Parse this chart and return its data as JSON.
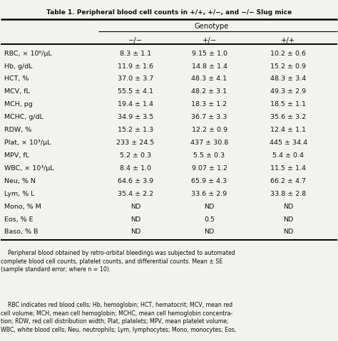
{
  "title": "Table 1. Peripheral blood cell counts in +/+, +/−, and −/− Slug mice",
  "genotype_header": "Genotype",
  "col_headers": [
    "−/−",
    "+/−",
    "+/+"
  ],
  "rows": [
    [
      "RBC, × 10⁶/μL",
      "8.3 ± 1.1",
      "9.15 ± 1.0",
      "10.2 ± 0.6"
    ],
    [
      "Hb, g/dL",
      "11.9 ± 1.6",
      "14.8 ± 1.4",
      "15.2 ± 0.9"
    ],
    [
      "HCT, %",
      "37.0 ± 3.7",
      "48.3 ± 4.1",
      "48.3 ± 3.4"
    ],
    [
      "MCV, fL",
      "55.5 ± 4.1",
      "48.2 ± 3.1",
      "49.3 ± 2.9"
    ],
    [
      "MCH, pg",
      "19.4 ± 1.4",
      "18.3 ± 1.2",
      "18.5 ± 1.1"
    ],
    [
      "MCHC, g/dL",
      "34.9 ± 3.5",
      "36.7 ± 3.3",
      "35.6 ± 3.2"
    ],
    [
      "RDW, %",
      "15.2 ± 1.3",
      "12.2 ± 0.9",
      "12.4 ± 1.1"
    ],
    [
      "Plat, × 10³/μL",
      "233 ± 24.5",
      "437 ± 30.8",
      "445 ± 34.4"
    ],
    [
      "MPV, fL",
      "5.2 ± 0.3",
      "5.5 ± 0.3",
      "5.4 ± 0.4"
    ],
    [
      "WBC, × 10³/μL",
      "8.4 ± 1.0",
      "9.07 ± 1.2",
      "11.5 ± 1.4"
    ],
    [
      "Neu, % N",
      "64.6 ± 3.9",
      "65.9 ± 4.3",
      "66.2 ± 4.7"
    ],
    [
      "Lym, % L",
      "35.4 ± 2.2",
      "33.6 ± 2.9",
      "33.8 ± 2.8"
    ],
    [
      "Mono, % M",
      "ND",
      "ND",
      "ND"
    ],
    [
      "Eos, % E",
      "ND",
      "0.5",
      "ND"
    ],
    [
      "Baso, % B",
      "ND",
      "ND",
      "ND"
    ]
  ],
  "footnote1": "    Peripheral blood obtained by retro-orbital bleedings was subjected to automated\ncomplete blood cell counts, platelet counts, and differential counts. Mean ± SE\n(sample standard error, where n = 10).",
  "footnote2": "    RBC indicates red blood cells; Hb, hemoglobin; HCT, hematocrit; MCV, mean red\ncell volume; MCH, mean cell hemoglobin; MCHC, mean cell hemoglobin concentra-\ntion; RDW, red cell distribution width; Plat, platelets; MPV, mean platelet volume;\nWBC, white blood cells; Neu, neutrophils; Lym, lymphocytes; Mono, monocytes; Eos,",
  "bg_color": "#f2f2ee",
  "text_color": "#111111",
  "fig_width": 4.74,
  "fig_height": 4.79,
  "dpi": 100
}
